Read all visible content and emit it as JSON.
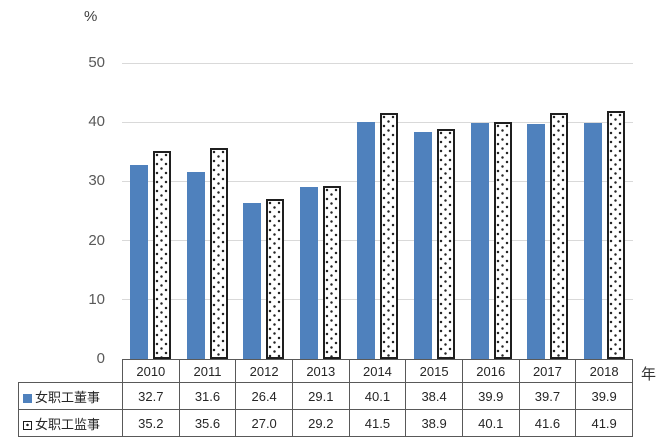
{
  "chart": {
    "percent_label": "%",
    "year_axis_label": "年",
    "y_ticks": [
      50,
      40,
      30,
      20,
      10,
      0
    ],
    "colors": {
      "bar_fill": "#4f81bd",
      "pattern_dot": "#262626",
      "pattern_border": "#1f1f1f",
      "gridline": "#d9d9d9",
      "table_border": "#595959",
      "tick_text": "#595959",
      "table_text": "#262626"
    }
  },
  "chart_data": {
    "type": "bar",
    "categories": [
      "2010",
      "2011",
      "2012",
      "2013",
      "2014",
      "2015",
      "2016",
      "2017",
      "2018"
    ],
    "series": [
      {
        "name": "女职工董事",
        "marker": "blue-filled-square",
        "values": [
          32.7,
          31.6,
          26.4,
          29.1,
          40.1,
          38.4,
          39.9,
          39.7,
          39.9
        ]
      },
      {
        "name": "女职工监事",
        "marker": "white-dotted-square",
        "values": [
          35.2,
          35.6,
          27.0,
          29.2,
          41.5,
          38.9,
          40.1,
          41.6,
          41.9
        ]
      }
    ],
    "title": "",
    "xlabel": "年",
    "ylabel": "%",
    "ylim": [
      0,
      50
    ],
    "grid": true,
    "legend_position": "table-row-headers"
  }
}
